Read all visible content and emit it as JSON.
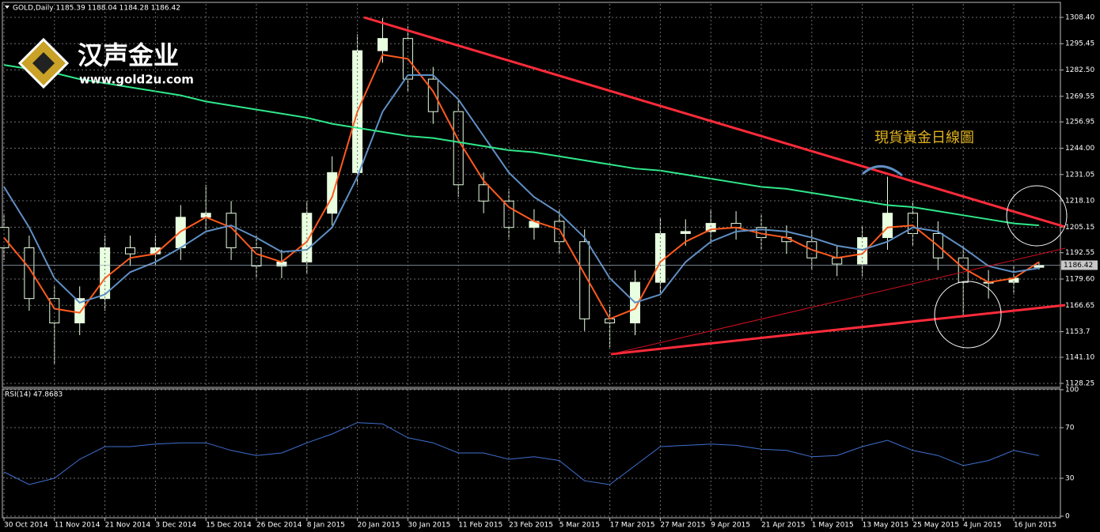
{
  "logo": {
    "name": "汉声金业",
    "url": "www.gold2u.com"
  },
  "chart_data": [
    {
      "type": "candlestick",
      "title": "GOLD,Daily  1185.39 1188.04 1184.28 1186.42",
      "annotation": "現貨黃金日線圖",
      "open": [
        1205,
        1195,
        1170,
        1158,
        1170,
        1195,
        1192,
        1195,
        1210,
        1212,
        1195,
        1186,
        1188,
        1212,
        1232,
        1292,
        1298,
        1278,
        1262,
        1226,
        1218,
        1205,
        1208,
        1198,
        1160,
        1158,
        1178,
        1202,
        1203,
        1207,
        1205,
        1200,
        1198,
        1190,
        1187,
        1200,
        1212,
        1202,
        1190,
        1178,
        1178,
        1185.39
      ],
      "high": [
        1211,
        1201,
        1176,
        1176,
        1201,
        1201,
        1201,
        1216,
        1226,
        1218,
        1201,
        1194,
        1218,
        1240,
        1300,
        1308,
        1304,
        1284,
        1268,
        1232,
        1224,
        1214,
        1214,
        1204,
        1166,
        1184,
        1210,
        1209,
        1214,
        1213,
        1211,
        1206,
        1204,
        1196,
        1206,
        1230,
        1218,
        1208,
        1196,
        1184,
        1186,
        1188.04
      ],
      "low": [
        1189,
        1164,
        1138,
        1152,
        1164,
        1186,
        1186,
        1189,
        1204,
        1189,
        1180,
        1180,
        1182,
        1206,
        1226,
        1286,
        1272,
        1256,
        1220,
        1212,
        1199,
        1199,
        1192,
        1154,
        1146,
        1152,
        1172,
        1196,
        1197,
        1199,
        1194,
        1192,
        1184,
        1181,
        1181,
        1194,
        1196,
        1184,
        1162,
        1170,
        1172,
        1184.28
      ],
      "close": [
        1195,
        1170,
        1158,
        1170,
        1195,
        1192,
        1195,
        1210,
        1212,
        1195,
        1186,
        1188,
        1212,
        1232,
        1292,
        1298,
        1278,
        1262,
        1226,
        1218,
        1205,
        1208,
        1198,
        1160,
        1158,
        1178,
        1202,
        1203,
        1207,
        1205,
        1200,
        1198,
        1190,
        1187,
        1200,
        1212,
        1202,
        1190,
        1178,
        1178,
        1180,
        1186.42
      ],
      "bull_color": "#e8ffe0",
      "bear_color": "#000000",
      "series": [
        {
          "color": "#ff5a1f",
          "values": [
            1200,
            1185,
            1165,
            1163,
            1180,
            1190,
            1192,
            1203,
            1210,
            1205,
            1192,
            1188,
            1198,
            1220,
            1262,
            1290,
            1288,
            1272,
            1248,
            1228,
            1215,
            1208,
            1204,
            1182,
            1160,
            1165,
            1188,
            1198,
            1204,
            1205,
            1202,
            1200,
            1194,
            1190,
            1192,
            1205,
            1206,
            1196,
            1185,
            1178,
            1180,
            1188
          ]
        },
        {
          "color": "#5f8fc4",
          "values": [
            1225,
            1205,
            1180,
            1168,
            1172,
            1183,
            1188,
            1195,
            1203,
            1206,
            1200,
            1193,
            1194,
            1205,
            1230,
            1262,
            1280,
            1280,
            1268,
            1250,
            1232,
            1220,
            1212,
            1200,
            1180,
            1168,
            1172,
            1188,
            1198,
            1203,
            1204,
            1203,
            1200,
            1196,
            1194,
            1198,
            1205,
            1203,
            1195,
            1186,
            1183,
            1185
          ]
        },
        {
          "color": "#2fe88a",
          "values": [
            1285,
            1283,
            1281,
            1278,
            1276,
            1274,
            1272,
            1270,
            1267,
            1265,
            1263,
            1261,
            1259,
            1256,
            1254,
            1252,
            1250,
            1249,
            1247,
            1245,
            1243,
            1242,
            1240,
            1238,
            1236,
            1234,
            1233,
            1231,
            1229,
            1227,
            1225,
            1224,
            1222,
            1220,
            1218,
            1216,
            1215,
            1213,
            1211,
            1209,
            1207,
            1206
          ]
        }
      ],
      "current_price": 1186.42,
      "ylim": [
        1126.3,
        1315.0
      ],
      "yticks": [
        {
          "value": 1308.4,
          "label": "1308.40"
        },
        1295.45,
        {
          "value": 1282.5,
          "label": "1282.50"
        },
        1269.55,
        1256.95,
        {
          "value": 1244,
          "label": "1244.00"
        },
        1231.05,
        {
          "value": 1218.1,
          "label": "1218.10"
        },
        1205.15,
        1192.55,
        {
          "value": 1179.6,
          "label": "1179.60"
        },
        1166.65,
        1153.7,
        {
          "value": 1141.1,
          "label": "1141.10"
        },
        1128.25
      ],
      "grid": true
    },
    {
      "type": "line",
      "title": "RSI(14) 47.8683",
      "categories": [
        "30 Oct 2014",
        null,
        "11 Nov 2014",
        null,
        "21 Nov 2014",
        null,
        "3 Dec 2014",
        null,
        "15 Dec 2014",
        null,
        "26 Dec 2014",
        null,
        "8 Jan 2015",
        null,
        "20 Jan 2015",
        null,
        "30 Jan 2015",
        null,
        "11 Feb 2015",
        null,
        "23 Feb 2015",
        null,
        "5 Mar 2015",
        null,
        "17 Mar 2015",
        null,
        "27 Mar 2015",
        null,
        "9 Apr 2015",
        null,
        "21 Apr 2015",
        null,
        "1 May 2015",
        null,
        "13 May 2015",
        null,
        "25 May 2015",
        null,
        "4 Jun 2015",
        null,
        "16 Jun 2015",
        null
      ],
      "series": [
        {
          "color": "#3f6fd0",
          "values": [
            35,
            25,
            30,
            45,
            55,
            55,
            57,
            58,
            58,
            52,
            48,
            50,
            58,
            65,
            74,
            73,
            62,
            58,
            50,
            50,
            45,
            47,
            44,
            28,
            25,
            40,
            55,
            56,
            57,
            56,
            53,
            52,
            47,
            48,
            55,
            60,
            52,
            48,
            40,
            44,
            52,
            47.8683
          ]
        }
      ],
      "ylim": [
        0,
        100
      ],
      "yticks": [
        0,
        30,
        70,
        100
      ],
      "grid": true
    }
  ]
}
